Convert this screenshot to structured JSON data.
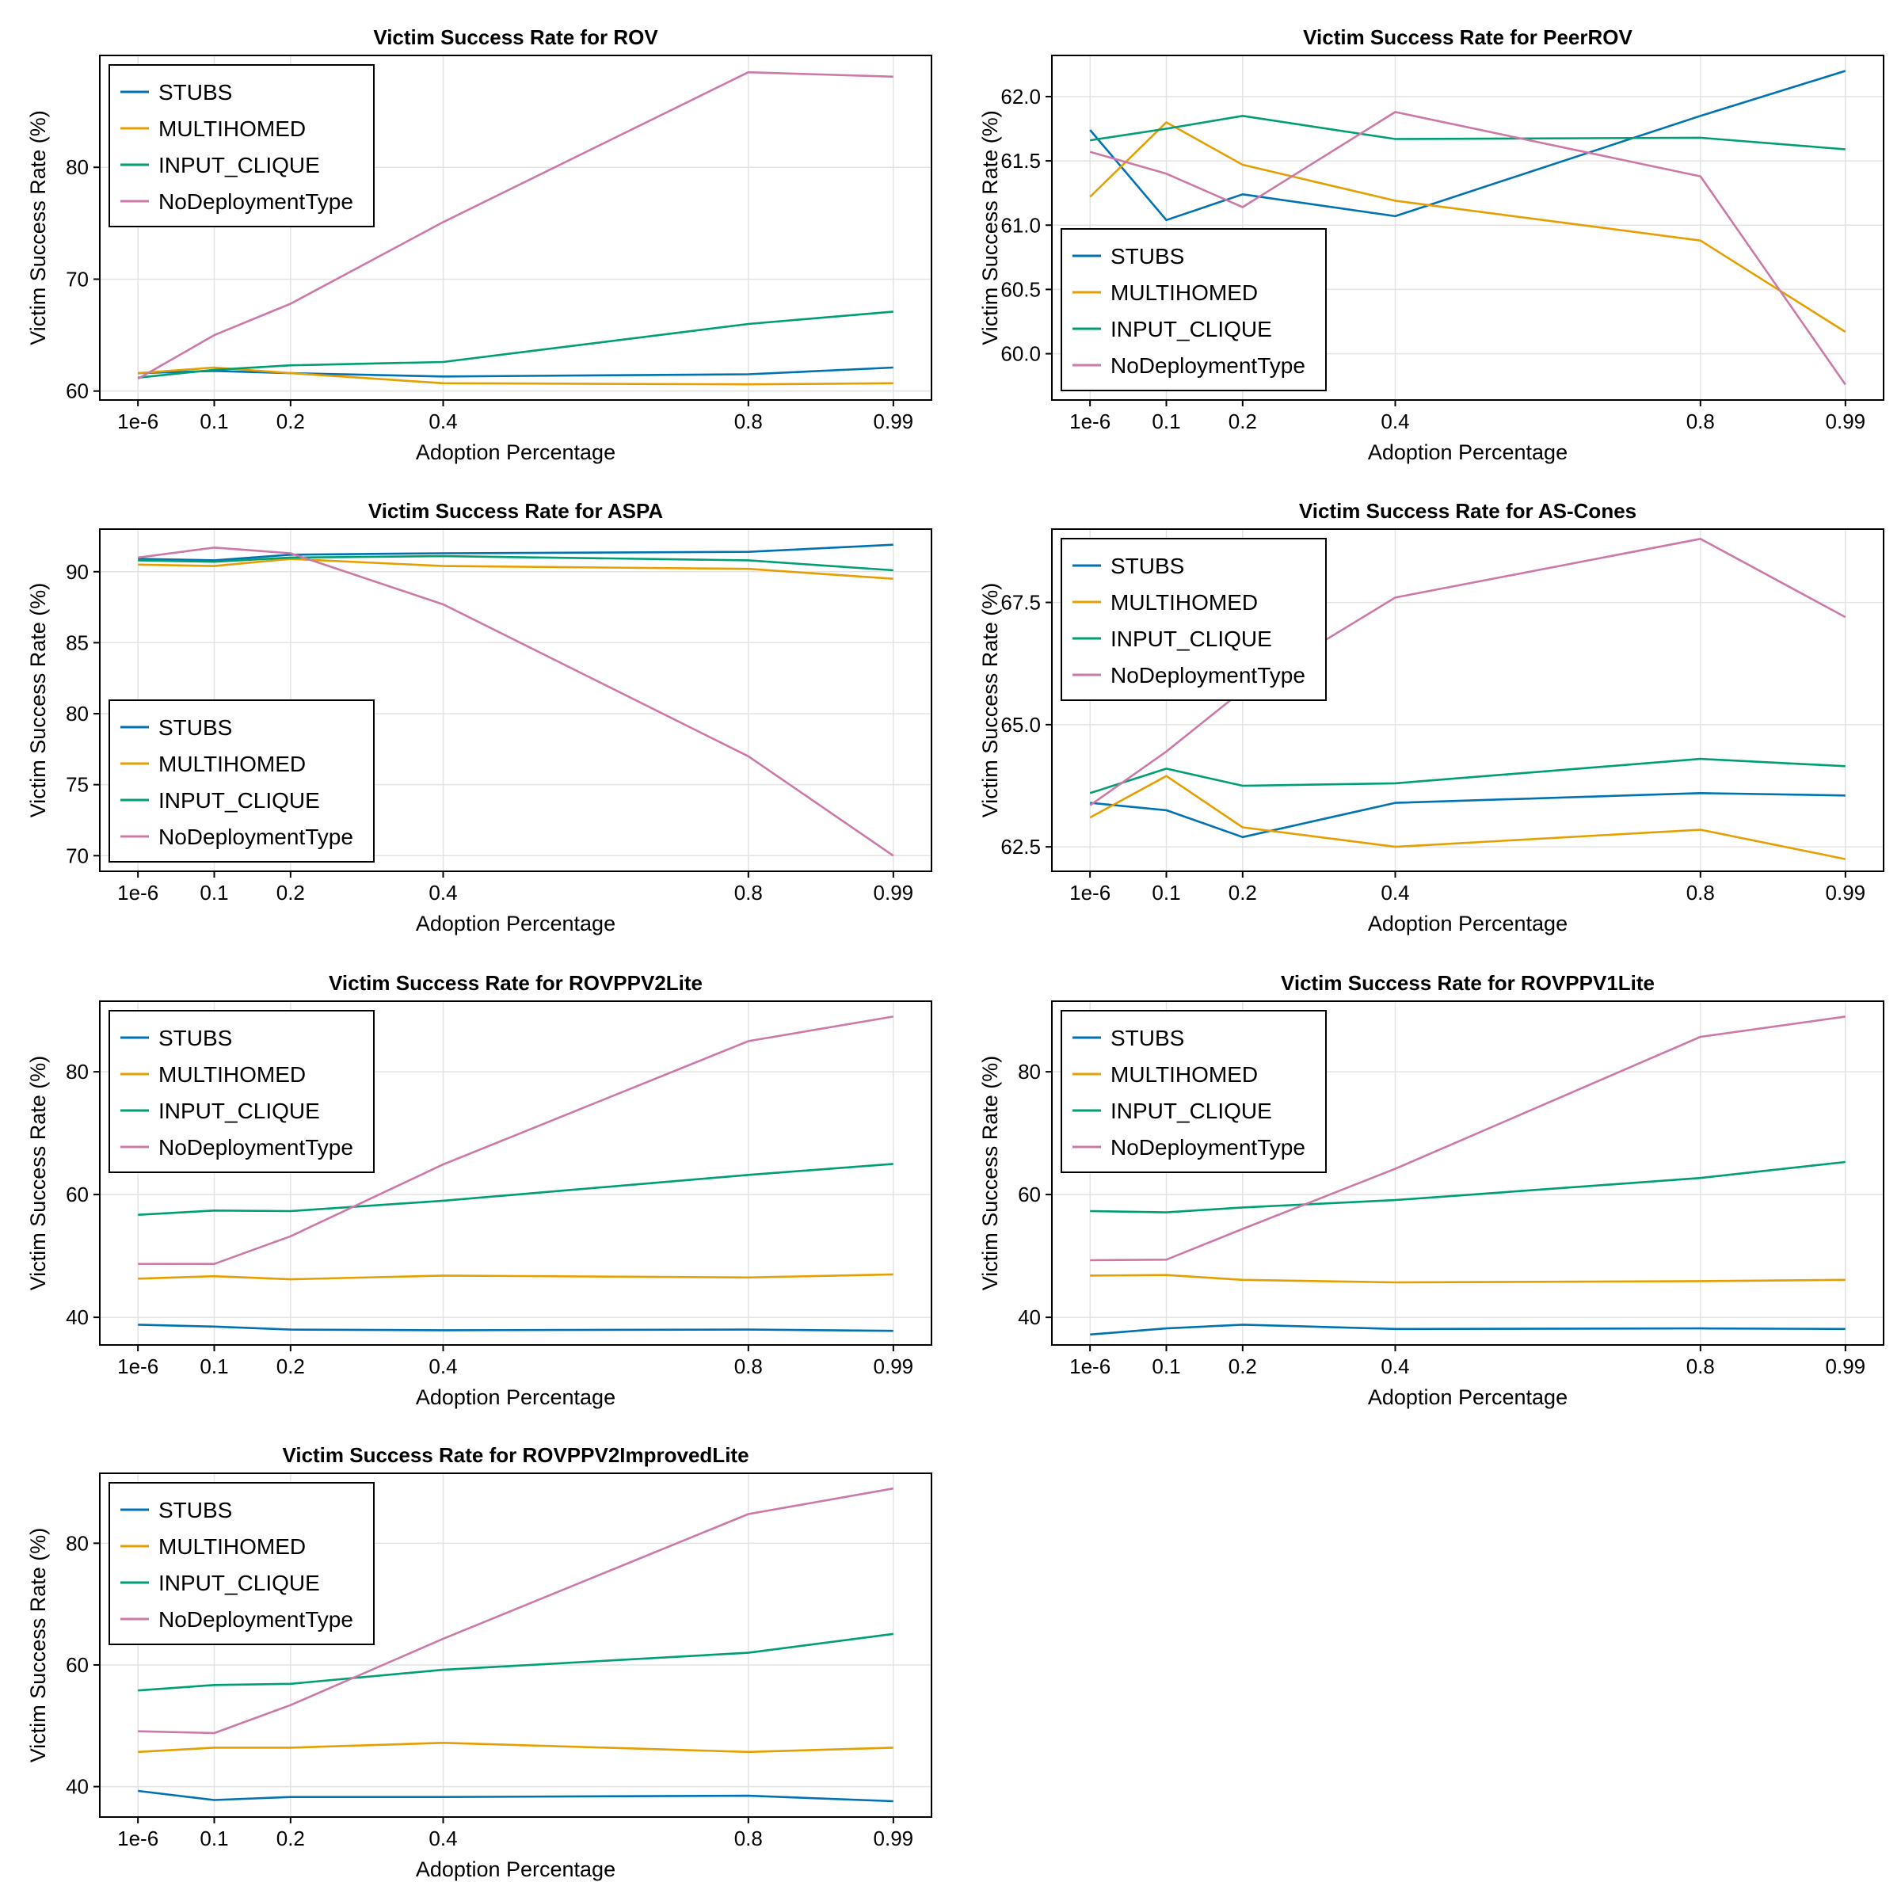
{
  "chart_data": [
    {
      "type": "line",
      "title": "Victim Success Rate for ROV",
      "xlabel": "Adoption Percentage",
      "ylabel": "Victim Success Rate (%)",
      "x": [
        1e-06,
        0.1,
        0.2,
        0.4,
        0.8,
        0.99
      ],
      "xtick_labels": [
        "1e-6",
        "0.1",
        "0.2",
        "0.4",
        "0.8",
        "0.99"
      ],
      "xlim": [
        -0.05,
        1.04
      ],
      "ylim": [
        59.2,
        90.0
      ],
      "yticks": [
        60,
        70,
        80
      ],
      "yticks_labels": [
        "60",
        "70",
        "80"
      ],
      "legend": "top-left",
      "series": [
        {
          "name": "STUBS",
          "values": [
            61.6,
            61.8,
            61.6,
            61.3,
            61.5,
            62.1
          ]
        },
        {
          "name": "MULTIHOMED",
          "values": [
            61.6,
            62.1,
            61.6,
            60.7,
            60.6,
            60.7
          ]
        },
        {
          "name": "INPUT_CLIQUE",
          "values": [
            61.2,
            61.9,
            62.3,
            62.6,
            66.0,
            67.1
          ]
        },
        {
          "name": "NoDeploymentType",
          "values": [
            61.1,
            65.0,
            67.8,
            75.1,
            88.5,
            88.1
          ]
        }
      ]
    },
    {
      "type": "line",
      "title": "Victim Success Rate for PeerROV",
      "xlabel": "Adoption Percentage",
      "ylabel": "Victim Success Rate (%)",
      "x": [
        1e-06,
        0.1,
        0.2,
        0.4,
        0.8,
        0.99
      ],
      "xtick_labels": [
        "1e-6",
        "0.1",
        "0.2",
        "0.4",
        "0.8",
        "0.99"
      ],
      "xlim": [
        -0.05,
        1.04
      ],
      "ylim": [
        59.64,
        62.32
      ],
      "yticks": [
        60.0,
        60.5,
        61.0,
        61.5,
        62.0
      ],
      "yticks_labels": [
        "60.0",
        "60.5",
        "61.0",
        "61.5",
        "62.0"
      ],
      "legend": "bottom-left",
      "series": [
        {
          "name": "STUBS",
          "values": [
            61.74,
            61.04,
            61.24,
            61.07,
            61.85,
            62.2
          ]
        },
        {
          "name": "MULTIHOMED",
          "values": [
            61.22,
            61.8,
            61.47,
            61.19,
            60.88,
            60.17
          ]
        },
        {
          "name": "INPUT_CLIQUE",
          "values": [
            61.66,
            61.75,
            61.85,
            61.67,
            61.68,
            61.59
          ]
        },
        {
          "name": "NoDeploymentType",
          "values": [
            61.57,
            61.4,
            61.14,
            61.88,
            61.38,
            59.76
          ]
        }
      ]
    },
    {
      "type": "line",
      "title": "Victim Success Rate for ASPA",
      "xlabel": "Adoption Percentage",
      "ylabel": "Victim Success Rate (%)",
      "x": [
        1e-06,
        0.1,
        0.2,
        0.4,
        0.8,
        0.99
      ],
      "xtick_labels": [
        "1e-6",
        "0.1",
        "0.2",
        "0.4",
        "0.8",
        "0.99"
      ],
      "xlim": [
        -0.05,
        1.04
      ],
      "ylim": [
        68.9,
        93.0
      ],
      "yticks": [
        70,
        75,
        80,
        85,
        90
      ],
      "yticks_labels": [
        "70",
        "75",
        "80",
        "85",
        "90"
      ],
      "legend": "bottom-left",
      "series": [
        {
          "name": "STUBS",
          "values": [
            90.9,
            90.8,
            91.2,
            91.3,
            91.4,
            91.9
          ]
        },
        {
          "name": "MULTIHOMED",
          "values": [
            90.5,
            90.4,
            90.9,
            90.4,
            90.2,
            89.5
          ]
        },
        {
          "name": "INPUT_CLIQUE",
          "values": [
            90.8,
            90.7,
            91.0,
            91.1,
            90.8,
            90.1
          ]
        },
        {
          "name": "NoDeploymentType",
          "values": [
            91.0,
            91.7,
            91.3,
            87.7,
            77.0,
            70.0
          ]
        }
      ]
    },
    {
      "type": "line",
      "title": "Victim Success Rate for AS-Cones",
      "xlabel": "Adoption Percentage",
      "ylabel": "Victim Success Rate (%)",
      "x": [
        1e-06,
        0.1,
        0.2,
        0.4,
        0.8,
        0.99
      ],
      "xtick_labels": [
        "1e-6",
        "0.1",
        "0.2",
        "0.4",
        "0.8",
        "0.99"
      ],
      "xlim": [
        -0.05,
        1.04
      ],
      "ylim": [
        62.0,
        69.0
      ],
      "yticks": [
        62.5,
        65.0,
        67.5
      ],
      "yticks_labels": [
        "62.5",
        "65.0",
        "67.5"
      ],
      "legend": "top-left",
      "series": [
        {
          "name": "STUBS",
          "values": [
            63.4,
            63.25,
            62.7,
            63.4,
            63.6,
            63.55
          ]
        },
        {
          "name": "MULTIHOMED",
          "values": [
            63.1,
            63.95,
            62.9,
            62.5,
            62.85,
            62.25
          ]
        },
        {
          "name": "INPUT_CLIQUE",
          "values": [
            63.6,
            64.1,
            63.75,
            63.8,
            64.3,
            64.15
          ]
        },
        {
          "name": "NoDeploymentType",
          "values": [
            63.35,
            64.45,
            65.7,
            67.6,
            68.8,
            67.2
          ]
        }
      ]
    },
    {
      "type": "line",
      "title": "Victim Success Rate for ROVPPV2Lite",
      "xlabel": "Adoption Percentage",
      "ylabel": "Victim Success Rate (%)",
      "x": [
        1e-06,
        0.1,
        0.2,
        0.4,
        0.8,
        0.99
      ],
      "xtick_labels": [
        "1e-6",
        "0.1",
        "0.2",
        "0.4",
        "0.8",
        "0.99"
      ],
      "xlim": [
        -0.05,
        1.04
      ],
      "ylim": [
        35.5,
        91.5
      ],
      "yticks": [
        40,
        60,
        80
      ],
      "yticks_labels": [
        "40",
        "60",
        "80"
      ],
      "legend": "top-left",
      "series": [
        {
          "name": "STUBS",
          "values": [
            38.8,
            38.5,
            38.0,
            37.9,
            38.0,
            37.8
          ]
        },
        {
          "name": "MULTIHOMED",
          "values": [
            46.3,
            46.7,
            46.2,
            46.8,
            46.5,
            47.0
          ]
        },
        {
          "name": "INPUT_CLIQUE",
          "values": [
            56.7,
            57.4,
            57.3,
            59.0,
            63.2,
            65.0
          ]
        },
        {
          "name": "NoDeploymentType",
          "values": [
            48.7,
            48.7,
            53.2,
            64.9,
            85.0,
            89.0
          ]
        }
      ]
    },
    {
      "type": "line",
      "title": "Victim Success Rate for ROVPPV1Lite",
      "xlabel": "Adoption Percentage",
      "ylabel": "Victim Success Rate (%)",
      "x": [
        1e-06,
        0.1,
        0.2,
        0.4,
        0.8,
        0.99
      ],
      "xtick_labels": [
        "1e-6",
        "0.1",
        "0.2",
        "0.4",
        "0.8",
        "0.99"
      ],
      "xlim": [
        -0.05,
        1.04
      ],
      "ylim": [
        35.5,
        91.5
      ],
      "yticks": [
        40,
        60,
        80
      ],
      "yticks_labels": [
        "40",
        "60",
        "80"
      ],
      "legend": "top-left",
      "series": [
        {
          "name": "STUBS",
          "values": [
            37.2,
            38.2,
            38.8,
            38.1,
            38.2,
            38.1
          ]
        },
        {
          "name": "MULTIHOMED",
          "values": [
            46.8,
            46.9,
            46.1,
            45.7,
            45.9,
            46.1
          ]
        },
        {
          "name": "INPUT_CLIQUE",
          "values": [
            57.3,
            57.1,
            57.9,
            59.1,
            62.7,
            65.3
          ]
        },
        {
          "name": "NoDeploymentType",
          "values": [
            49.3,
            49.4,
            54.4,
            64.2,
            85.7,
            89.0
          ]
        }
      ]
    },
    {
      "type": "line",
      "title": "Victim Success Rate for ROVPPV2ImprovedLite",
      "xlabel": "Adoption Percentage",
      "ylabel": "Victim Success Rate (%)",
      "x": [
        1e-06,
        0.1,
        0.2,
        0.4,
        0.8,
        0.99
      ],
      "xtick_labels": [
        "1e-6",
        "0.1",
        "0.2",
        "0.4",
        "0.8",
        "0.99"
      ],
      "xlim": [
        -0.05,
        1.04
      ],
      "ylim": [
        35.0,
        91.5
      ],
      "yticks": [
        40,
        60,
        80
      ],
      "yticks_labels": [
        "40",
        "60",
        "80"
      ],
      "legend": "top-left",
      "series": [
        {
          "name": "STUBS",
          "values": [
            39.3,
            37.8,
            38.3,
            38.3,
            38.5,
            37.6
          ]
        },
        {
          "name": "MULTIHOMED",
          "values": [
            45.7,
            46.4,
            46.4,
            47.2,
            45.7,
            46.4
          ]
        },
        {
          "name": "INPUT_CLIQUE",
          "values": [
            55.8,
            56.7,
            56.9,
            59.2,
            62.0,
            65.1
          ]
        },
        {
          "name": "NoDeploymentType",
          "values": [
            49.1,
            48.8,
            53.4,
            64.3,
            84.8,
            89.0
          ]
        }
      ]
    }
  ],
  "series_colors": {
    "STUBS": "#0072b2",
    "MULTIHOMED": "#e69f00",
    "INPUT_CLIQUE": "#009e73",
    "NoDeploymentType": "#cc79a7"
  }
}
